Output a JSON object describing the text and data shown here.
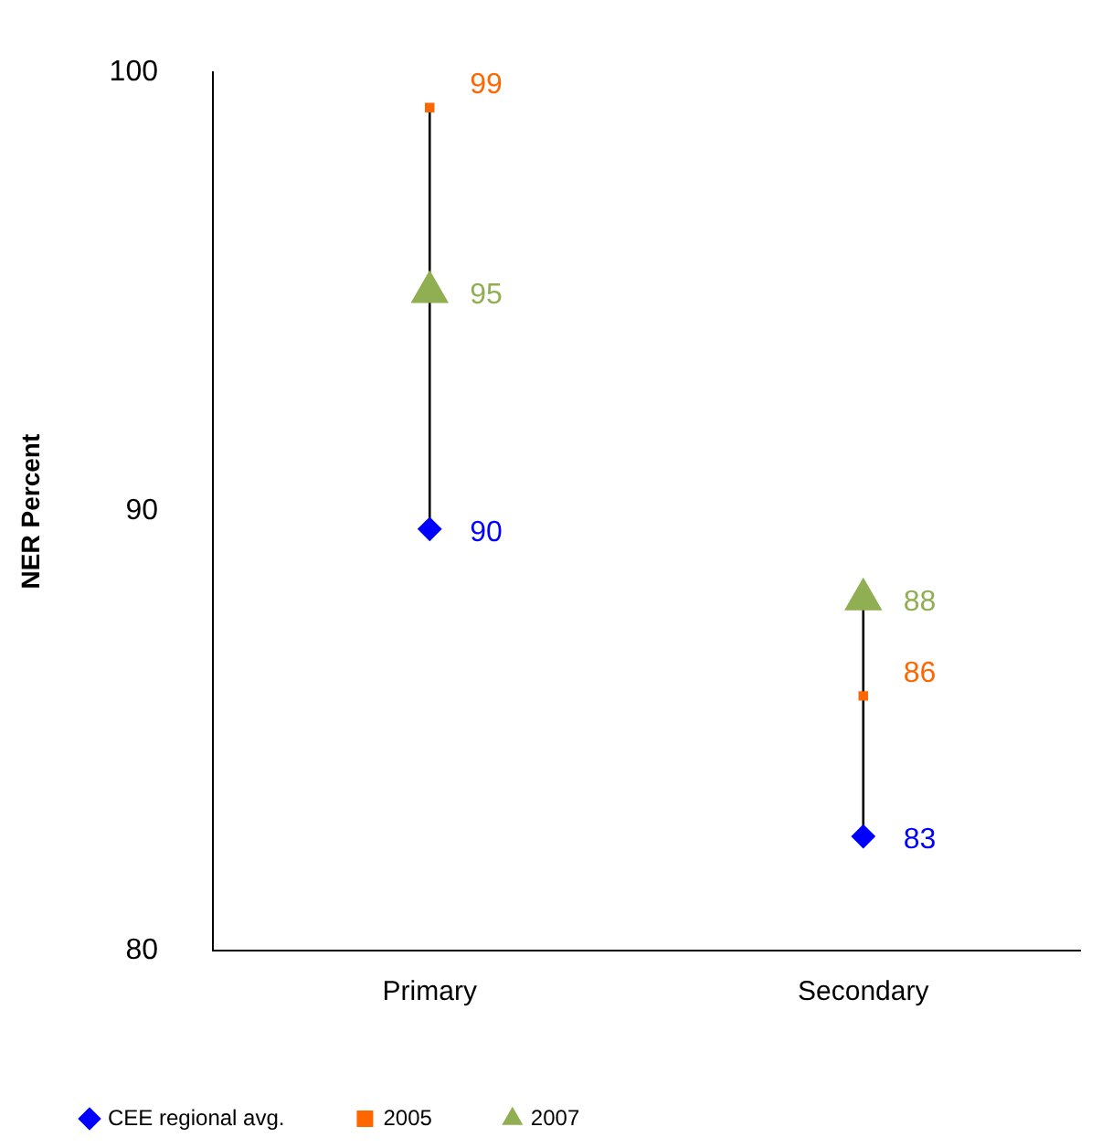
{
  "chart_data": {
    "type": "scatter",
    "ylabel": "NER Percent",
    "categories": [
      "Primary",
      "Secondary"
    ],
    "series": [
      {
        "name": "CEE regional avg.",
        "color": "#0000ff",
        "marker": "diamond",
        "values": [
          89.6,
          82.6
        ],
        "value_labels": [
          "90",
          "83"
        ]
      },
      {
        "name": "2005",
        "color": "#ff6600",
        "marker": "square",
        "values": [
          99.2,
          85.8
        ],
        "value_labels": [
          "99",
          "86"
        ]
      },
      {
        "name": "2007",
        "color": "#8faf52",
        "marker": "triangle",
        "values": [
          95,
          88
        ],
        "value_labels": [
          "95",
          "88"
        ]
      }
    ],
    "ylim": [
      80,
      100
    ],
    "yticks": [
      80,
      90,
      100
    ],
    "grid": false,
    "legend": "bottom left"
  }
}
